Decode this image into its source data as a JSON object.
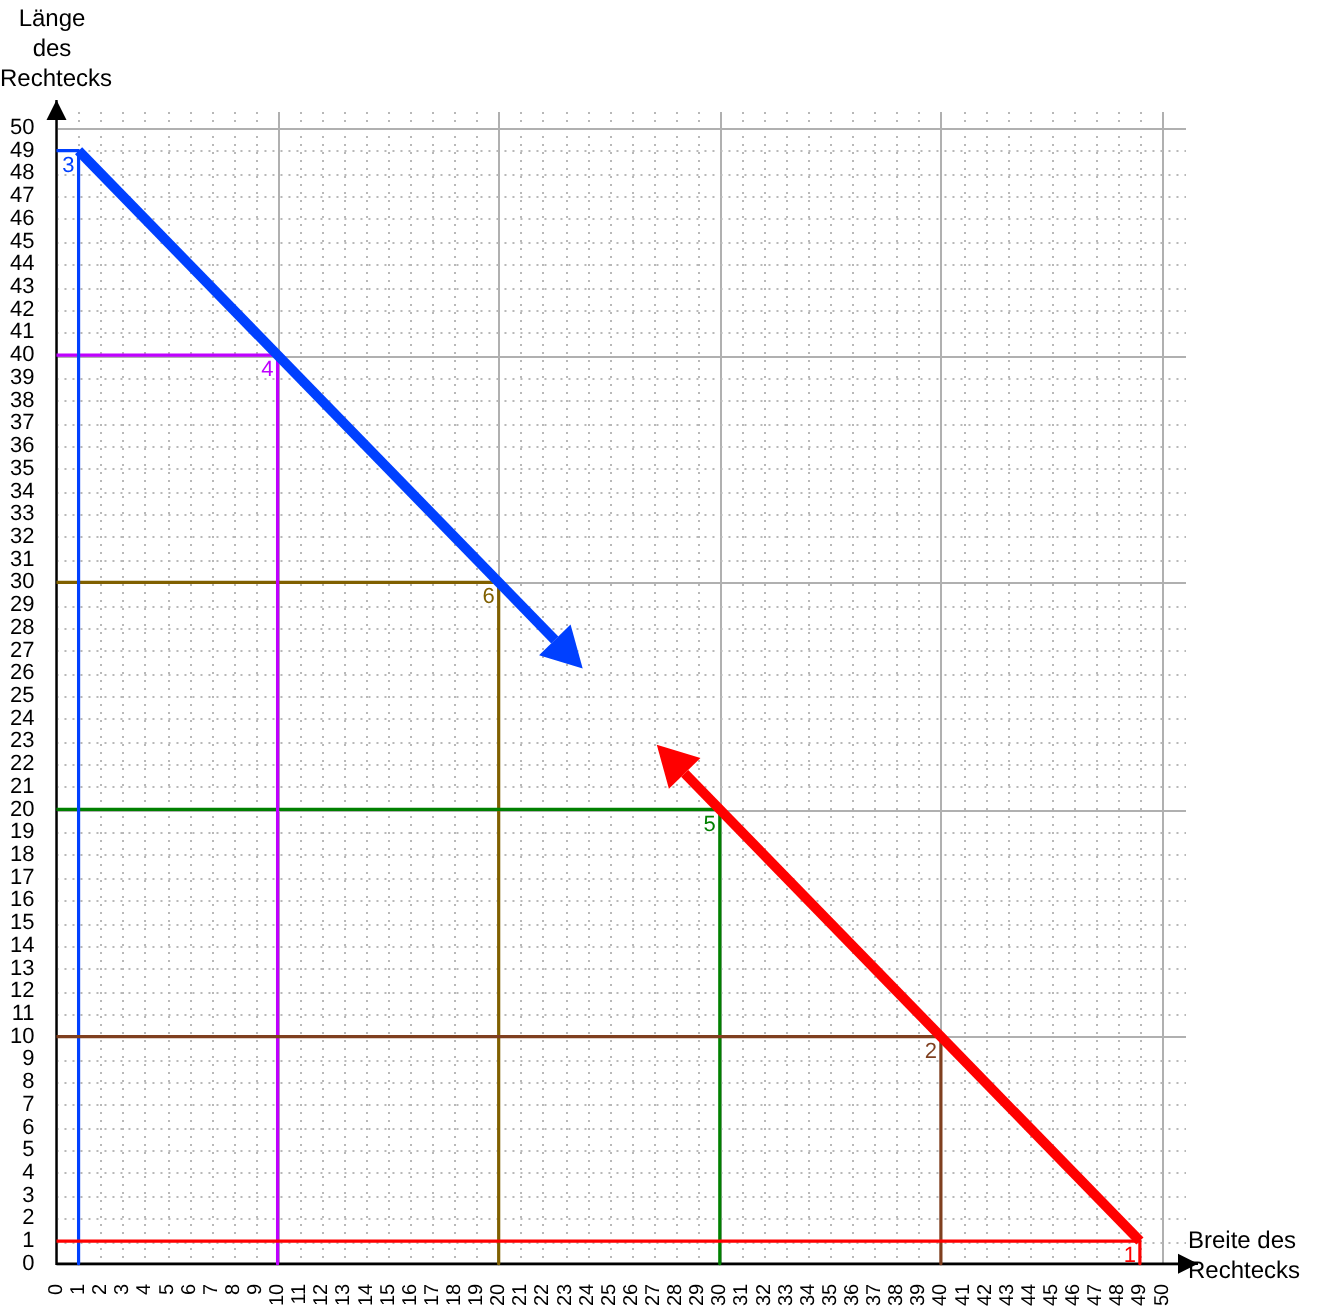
{
  "chart_data": {
    "type": "line",
    "xlabel": "Breite des Rechtecks",
    "ylabel": "Länge des Rechtecks",
    "xlim": [
      0,
      50
    ],
    "ylim": [
      0,
      50
    ],
    "xticks": [
      0,
      1,
      2,
      3,
      4,
      5,
      6,
      7,
      8,
      9,
      10,
      11,
      12,
      13,
      14,
      15,
      16,
      17,
      18,
      19,
      20,
      21,
      22,
      23,
      24,
      25,
      26,
      27,
      28,
      29,
      30,
      31,
      32,
      33,
      34,
      35,
      36,
      37,
      38,
      39,
      40,
      41,
      42,
      43,
      44,
      45,
      46,
      47,
      48,
      49,
      50
    ],
    "yticks": [
      0,
      1,
      2,
      3,
      4,
      5,
      6,
      7,
      8,
      9,
      10,
      11,
      12,
      13,
      14,
      15,
      16,
      17,
      18,
      19,
      20,
      21,
      22,
      23,
      24,
      25,
      26,
      27,
      28,
      29,
      30,
      31,
      32,
      33,
      34,
      35,
      36,
      37,
      38,
      39,
      40,
      41,
      42,
      43,
      44,
      45,
      46,
      47,
      48,
      49,
      50
    ],
    "grid": true,
    "legend": false,
    "marker": "none",
    "line_style": "solid",
    "series": [
      {
        "color": "#ff0000",
        "x": [
          0,
          49,
          49
        ],
        "values": [
          1,
          1,
          0
        ]
      },
      {
        "color": "#7f3f1f",
        "x": [
          0,
          40,
          40
        ],
        "values": [
          10,
          10,
          0
        ]
      },
      {
        "color": "#0040ff",
        "x": [
          0,
          1,
          1
        ],
        "values": [
          49,
          49,
          0
        ]
      },
      {
        "color": "#bf00ff",
        "x": [
          0,
          10,
          10
        ],
        "values": [
          40,
          40,
          0
        ]
      },
      {
        "color": "#008000",
        "x": [
          0,
          30,
          30
        ],
        "values": [
          20,
          20,
          0
        ]
      },
      {
        "color": "#806000",
        "x": [
          0,
          20,
          20
        ],
        "values": [
          30,
          30,
          0
        ]
      }
    ],
    "annotations": [
      {
        "text": "1",
        "x": 49,
        "y": 1
      },
      {
        "text": "2",
        "x": 40,
        "y": 10
      },
      {
        "text": "3",
        "x": 1,
        "y": 49
      },
      {
        "text": "4",
        "x": 10,
        "y": 40
      },
      {
        "text": "5",
        "x": 30,
        "y": 20
      },
      {
        "text": "6",
        "x": 20,
        "y": 30
      }
    ]
  }
}
